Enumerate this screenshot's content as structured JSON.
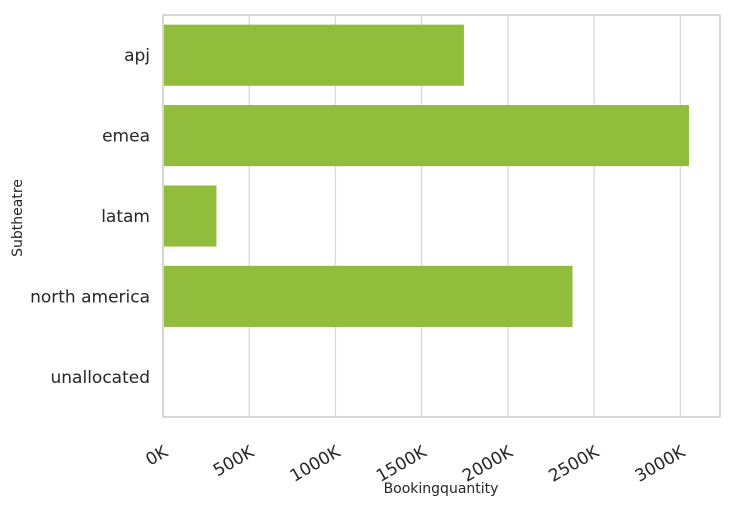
{
  "chart_data": {
    "type": "bar",
    "orientation": "horizontal",
    "categories": [
      "apj",
      "emea",
      "latam",
      "north america",
      "unallocated"
    ],
    "values": [
      1745000,
      3050000,
      310000,
      2375000,
      0
    ],
    "xlabel": "Bookingquantity",
    "ylabel": "Subtheatre",
    "xlim": [
      0,
      3230000
    ],
    "xticks": [
      0,
      500000,
      1000000,
      1500000,
      2000000,
      2500000,
      3000000
    ],
    "xtick_labels": [
      "0K",
      "500K",
      "1000K",
      "1500K",
      "2000K",
      "2500K",
      "3000K"
    ],
    "grid": "x",
    "bar_color": "#92bc3c",
    "grid_color": "#d9d9d9",
    "frame_color": "#cccccc"
  }
}
